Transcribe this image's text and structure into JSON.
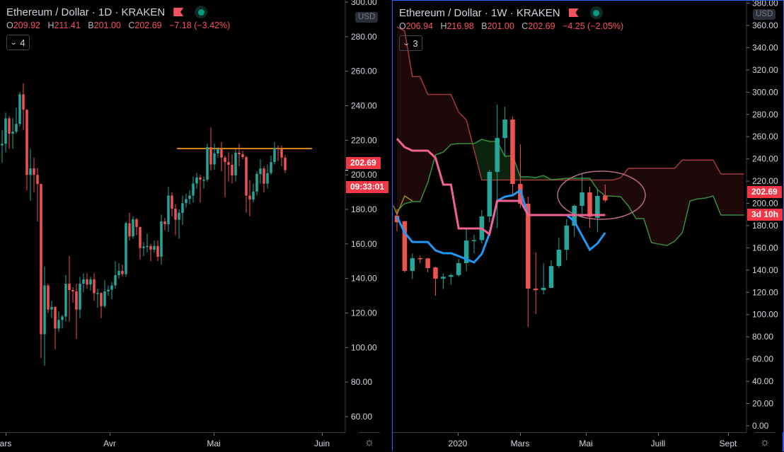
{
  "left": {
    "title": "Ethereum / Dollar · 1D · KRAKEN",
    "ohlc": {
      "o_key": "O",
      "o": "209.92",
      "h_key": "H",
      "h": "211.41",
      "b_key": "B",
      "b": "201.00",
      "c_key": "C",
      "c": "202.69",
      "change": "−7.18 (−3.42%)"
    },
    "indicator_count": "4",
    "currency": "USD",
    "last_price": "202.69",
    "countdown": "09:33:01",
    "y_ticks": [
      "300.00",
      "280.00",
      "260.00",
      "240.00",
      "220.00",
      "200.00",
      "180.00",
      "160.00",
      "140.00",
      "120.00",
      "100.00",
      "80.00",
      "60.00"
    ],
    "x_ticks": [
      "ars",
      "Avr",
      "Mai",
      "Juin"
    ]
  },
  "right": {
    "title": "Ethereum / Dollar · 1W · KRAKEN",
    "ohlc": {
      "o_key": "O",
      "o": "206.94",
      "h_key": "H",
      "h": "216.98",
      "b_key": "B",
      "b": "201.00",
      "c_key": "C",
      "c": "202.69",
      "change": "−4.25 (−2.05%)"
    },
    "indicator_count": "3",
    "currency": "USD",
    "last_price": "202.69",
    "countdown": "3d 10h",
    "y_ticks": [
      "380.00",
      "360.00",
      "340.00",
      "320.00",
      "300.00",
      "280.00",
      "260.00",
      "240.00",
      "220.00",
      "200.00",
      "180.00",
      "160.00",
      "140.00",
      "120.00",
      "100.00",
      "80.00",
      "60.00",
      "40.00",
      "20.00",
      "0.00"
    ],
    "x_ticks": [
      "2020",
      "Mars",
      "Mai",
      "Juill",
      "Sept"
    ]
  },
  "colors": {
    "up": "#26a69a",
    "down": "#ef5350",
    "accent": "#2962ff",
    "hline": "#d0801e",
    "conversion": "#2196f3",
    "base": "#f06292",
    "span_a": "#388e3c",
    "span_b": "#a33a3a",
    "lagging": "#9a8a1e",
    "ellipse": "#b86b80"
  },
  "chart_data": [
    {
      "type": "candlestick",
      "timeframe": "1D",
      "ylim": [
        60,
        300
      ],
      "grid": false,
      "horizontal_line": 215.2,
      "ohlc": [
        [
          217,
          226,
          207,
          218
        ],
        [
          218,
          236,
          213,
          232.7
        ],
        [
          232.7,
          234,
          215,
          223.8
        ],
        [
          223.8,
          233,
          215,
          225
        ],
        [
          225,
          239,
          224,
          229.5
        ],
        [
          229.5,
          248,
          228,
          246.6
        ],
        [
          246.6,
          253,
          226,
          237.7
        ],
        [
          237.7,
          238,
          191,
          200
        ],
        [
          200,
          215,
          185,
          203.7
        ],
        [
          203.7,
          210,
          190,
          200
        ],
        [
          200,
          204,
          173,
          194.7
        ],
        [
          194.7,
          195,
          94,
          107.7
        ],
        [
          107.7,
          147,
          89.5,
          136
        ],
        [
          136,
          137,
          120,
          122
        ],
        [
          122,
          127,
          117,
          123.5
        ],
        [
          123.5,
          124,
          99,
          111
        ],
        [
          111,
          121,
          109,
          116
        ],
        [
          116,
          119,
          111,
          118
        ],
        [
          118,
          142,
          115,
          137
        ],
        [
          137,
          153,
          115,
          133.3
        ],
        [
          133.3,
          135,
          126,
          132.5
        ],
        [
          132.5,
          137,
          105,
          122
        ],
        [
          122,
          141,
          117,
          137
        ],
        [
          137,
          143,
          132,
          139.5
        ],
        [
          139.5,
          143,
          134,
          136.5
        ],
        [
          136.5,
          141,
          133,
          139.5
        ],
        [
          139.5,
          143,
          127,
          131.5
        ],
        [
          131.5,
          134,
          123,
          131.6
        ],
        [
          131.6,
          132,
          117,
          124
        ],
        [
          124,
          139,
          123,
          132.5
        ],
        [
          132.5,
          136,
          130,
          133.5
        ],
        [
          133.5,
          138,
          128,
          136
        ],
        [
          136,
          150,
          134,
          141.9
        ],
        [
          141.9,
          149,
          140,
          144.4
        ],
        [
          144.4,
          148,
          141,
          142.5
        ],
        [
          142.5,
          173,
          141,
          172
        ],
        [
          172,
          178,
          162,
          164.4
        ],
        [
          164.4,
          176,
          163,
          174.3
        ],
        [
          174.3,
          175,
          165,
          169.8
        ],
        [
          169.8,
          170,
          151,
          157.6
        ],
        [
          157.6,
          161,
          153,
          158.5
        ],
        [
          158.5,
          166,
          155,
          158.8
        ],
        [
          158.8,
          160,
          150,
          156.7
        ],
        [
          156.7,
          162,
          155,
          158.8
        ],
        [
          158.8,
          162,
          150,
          152.6
        ],
        [
          152.6,
          177,
          148,
          173
        ],
        [
          173,
          175,
          168,
          171.4
        ],
        [
          171.4,
          193,
          167,
          188
        ],
        [
          188,
          190,
          176,
          180.4
        ],
        [
          180.4,
          183,
          165,
          174
        ],
        [
          174,
          180,
          163,
          178
        ],
        [
          178,
          188,
          171,
          183.6
        ],
        [
          183.6,
          189,
          181,
          186
        ],
        [
          186,
          191,
          183,
          188
        ],
        [
          188,
          199,
          184,
          195
        ],
        [
          195,
          201,
          192,
          198.5
        ],
        [
          198.5,
          200,
          184,
          197.2
        ],
        [
          197.2,
          199,
          192,
          197.2
        ],
        [
          197.2,
          218,
          196,
          216
        ],
        [
          216,
          227.5,
          202.5,
          206
        ],
        [
          206,
          218,
          203,
          212.4
        ],
        [
          212.4,
          216,
          210,
          214.8
        ],
        [
          214.8,
          219,
          202,
          210
        ],
        [
          210,
          211,
          187,
          207.4
        ],
        [
          207.4,
          213,
          196,
          205.8
        ],
        [
          205.8,
          212,
          195,
          199.7
        ],
        [
          199.7,
          215,
          196,
          212.8
        ],
        [
          212.8,
          218,
          205,
          211.9
        ],
        [
          211.9,
          214,
          209,
          210.3
        ],
        [
          210.3,
          211,
          178,
          188
        ],
        [
          188,
          197,
          176,
          185.7
        ],
        [
          185.7,
          195,
          184,
          190.3
        ],
        [
          190.3,
          202,
          188,
          200.5
        ],
        [
          200.5,
          209,
          195,
          203.7
        ],
        [
          203.7,
          205,
          190,
          194.9
        ],
        [
          194.9,
          206,
          192,
          201
        ],
        [
          201,
          211,
          200,
          207.4
        ],
        [
          207.4,
          219,
          206,
          215.6
        ],
        [
          215.6,
          217,
          208,
          215
        ],
        [
          215,
          217,
          205,
          210
        ],
        [
          209.92,
          211.41,
          201,
          202.69
        ]
      ]
    },
    {
      "type": "candlestick",
      "timeframe": "1W",
      "ylim": [
        0,
        380
      ],
      "grid": false,
      "ohlc": [
        [
          189,
          195,
          175,
          183
        ],
        [
          184,
          184,
          138,
          139.3
        ],
        [
          139.3,
          155,
          132,
          150.7
        ],
        [
          150.7,
          153,
          146,
          150
        ],
        [
          150.5,
          151,
          138,
          141.8
        ],
        [
          142.4,
          143,
          117,
          132.3
        ],
        [
          132.3,
          137,
          123,
          134
        ],
        [
          134,
          137,
          127,
          135.5
        ],
        [
          135.5,
          150,
          134,
          146.3
        ],
        [
          146.3,
          177,
          139,
          166.6
        ],
        [
          166.6,
          172,
          155,
          167
        ],
        [
          167,
          194,
          164,
          188.3
        ],
        [
          188.3,
          230,
          183,
          228.3
        ],
        [
          228.3,
          289,
          178,
          258.8
        ],
        [
          258.8,
          287,
          243,
          275.4
        ],
        [
          275.4,
          278,
          208,
          217.5
        ],
        [
          217.5,
          253,
          196,
          199.7
        ],
        [
          199.7,
          206,
          89,
          123.4
        ],
        [
          123.4,
          156,
          100.5,
          122
        ],
        [
          122,
          146,
          118,
          124
        ],
        [
          124,
          149,
          124,
          143.6
        ],
        [
          143.6,
          169,
          142,
          158.3
        ],
        [
          158.3,
          186,
          149,
          180
        ],
        [
          180,
          199,
          170,
          197.8
        ],
        [
          197.8,
          227,
          187,
          209.9
        ],
        [
          209.9,
          215,
          178,
          188
        ],
        [
          187,
          213,
          174,
          206.7
        ],
        [
          206.94,
          216.98,
          201,
          202.69
        ]
      ],
      "ichimoku": {
        "conversion": [
          188.2,
          173.6,
          165.3,
          165.3,
          165.3,
          157.7,
          155.2,
          155.2,
          152.6,
          149.8,
          146.9,
          154.5,
          173,
          202.2,
          206,
          207.3,
          211.8,
          189.5,
          189.5,
          189.5,
          189.5,
          189.5,
          189.5,
          183.8,
          171,
          158.3,
          164,
          173.6
        ],
        "base": [
          258.2,
          250.6,
          247.4,
          247.4,
          247.4,
          241,
          216.9,
          216.9,
          177.4,
          177.4,
          177.4,
          177.4,
          172.3,
          202.2,
          202.2,
          202.2,
          202.2,
          189.5,
          189.5,
          189.5,
          189.5,
          189.5,
          189.5,
          189.5,
          189.5,
          189.5,
          189.5,
          189.5
        ],
        "lagging": [
          190,
          206.7,
          202.2
        ],
        "span_a": [
          193.3,
          199.7,
          201.6,
          201.6,
          218.8,
          243.6,
          246.1,
          253,
          253.8,
          253.8,
          253.8,
          257.6,
          255.7,
          255.7,
          242.3,
          243,
          223.9,
          223.9,
          223.2,
          225.1,
          221.3,
          222,
          222.6,
          222.6,
          222.6,
          222.6,
          212.4,
          206.7,
          206.5,
          206,
          197.8,
          186.3,
          186.3,
          164.7,
          163.4,
          162.1,
          166,
          173.6,
          202.2,
          204.1,
          204.8,
          206.7,
          189.5,
          189.5,
          189.5,
          189.5
        ],
        "span_b": [
          358.7,
          355,
          314,
          314,
          298,
          298,
          298,
          298,
          282,
          275,
          248,
          221,
          221,
          221,
          221,
          221,
          221,
          221,
          221,
          221,
          221,
          221,
          221,
          221,
          221,
          221,
          221,
          221,
          221,
          223,
          231.5,
          231.5,
          231.5,
          231.5,
          231.5,
          231.5,
          231.5,
          239,
          239,
          239,
          239,
          239,
          226.4,
          226.4,
          226.4,
          226.4
        ]
      }
    }
  ]
}
